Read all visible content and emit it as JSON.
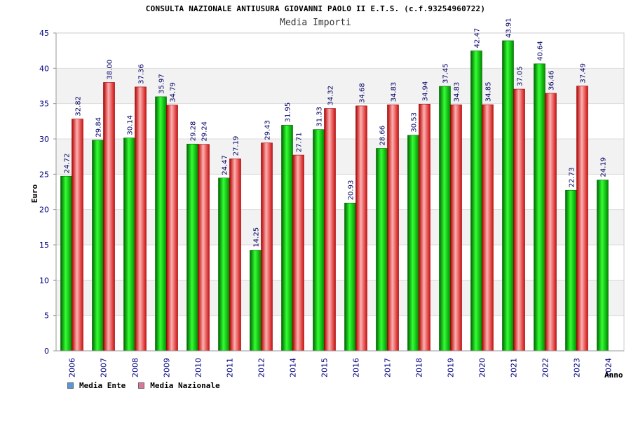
{
  "chart_data": {
    "type": "bar",
    "title": "CONSULTA NAZIONALE ANTIUSURA GIOVANNI PAOLO II E.T.S. (c.f.93254960722)",
    "subtitle": "Media Importi",
    "ylabel": "Euro",
    "xlabel": "Anno",
    "ylim": [
      0,
      45
    ],
    "yticks": [
      0,
      5,
      10,
      15,
      20,
      25,
      30,
      35,
      40,
      45
    ],
    "grid": "horizontal bands",
    "legend_position": "bottom-left",
    "categories": [
      "2006",
      "2007",
      "2008",
      "2009",
      "2010",
      "2011",
      "2012",
      "2014",
      "2015",
      "2016",
      "2017",
      "2018",
      "2019",
      "2020",
      "2021",
      "2022",
      "2023",
      "2024"
    ],
    "series": [
      {
        "name": "Media Ente",
        "color": "#00b000",
        "legend_color": "#5599dd",
        "values": [
          24.72,
          29.84,
          30.14,
          35.97,
          29.28,
          24.47,
          14.25,
          31.95,
          31.33,
          20.93,
          28.66,
          30.53,
          37.45,
          42.47,
          43.91,
          40.64,
          22.73,
          24.19
        ],
        "labels": [
          "24.72",
          "29.84",
          "30.14",
          "35.97",
          "29.28",
          "24.47",
          "14.25",
          "31.95",
          "31.33",
          "20.93",
          "28.66",
          "30.53",
          "37.45",
          "42.47",
          "43.91",
          "40.64",
          "22.73",
          "24.19"
        ]
      },
      {
        "name": "Media Nazionale",
        "color": "#e03030",
        "legend_color": "#dd7799",
        "values": [
          32.82,
          38.0,
          37.36,
          34.79,
          29.24,
          27.19,
          29.43,
          27.71,
          34.32,
          34.68,
          34.83,
          34.94,
          34.83,
          34.85,
          37.05,
          36.46,
          37.49,
          null
        ],
        "labels": [
          "32.82",
          "38.00",
          "37.36",
          "34.79",
          "29.24",
          "27.19",
          "29.43",
          "27.71",
          "34.32",
          "34.68",
          "34.83",
          "34.94",
          "34.83",
          "34.85",
          "37.05",
          "36.46",
          "37.49",
          ""
        ]
      }
    ]
  }
}
